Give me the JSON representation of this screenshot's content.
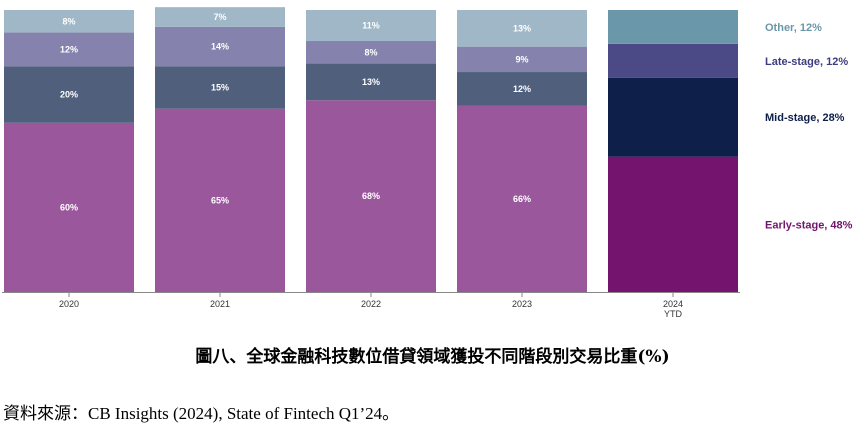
{
  "chart_data": {
    "type": "bar",
    "stacked": true,
    "categories": [
      "2020",
      "2021",
      "2022",
      "2023",
      "2024\nYTD"
    ],
    "series": [
      {
        "name": "Early-stage",
        "values": [
          60,
          65,
          68,
          66,
          48
        ],
        "labels": [
          "60%",
          "65%",
          "68%",
          "66%",
          ""
        ]
      },
      {
        "name": "Mid-stage",
        "values": [
          20,
          15,
          13,
          12,
          28
        ],
        "labels": [
          "20%",
          "15%",
          "13%",
          "12%",
          ""
        ]
      },
      {
        "name": "Late-stage",
        "values": [
          12,
          14,
          8,
          9,
          12
        ],
        "labels": [
          "12%",
          "14%",
          "8%",
          "9%",
          ""
        ]
      },
      {
        "name": "Other",
        "values": [
          8,
          7,
          11,
          13,
          12
        ],
        "labels": [
          "8%",
          "7%",
          "11%",
          "13%",
          ""
        ]
      }
    ],
    "colors": {
      "history": [
        "#9b579c",
        "#4f5f7c",
        "#8583ad",
        "#9fb7c6"
      ],
      "highlight": [
        "#74146f",
        "#0e1f4a",
        "#4c4a86",
        "#6a97aa"
      ]
    },
    "legend": [
      {
        "text": "Other, 12%",
        "color": "#6a97aa"
      },
      {
        "text": "Late-stage, 12%",
        "color": "#3e3c80"
      },
      {
        "text": "Mid-stage, 28%",
        "color": "#0e1f4a"
      },
      {
        "text": "Early-stage, 48%",
        "color": "#74146f"
      }
    ],
    "ylim": [
      0,
      100
    ],
    "legend_position": "right"
  },
  "caption": "圖八、全球金融科技數位借貸領域獲投不同階段別交易比重(%)",
  "source": "資料來源：CB Insights (2024), State of Fintech Q1’24。"
}
